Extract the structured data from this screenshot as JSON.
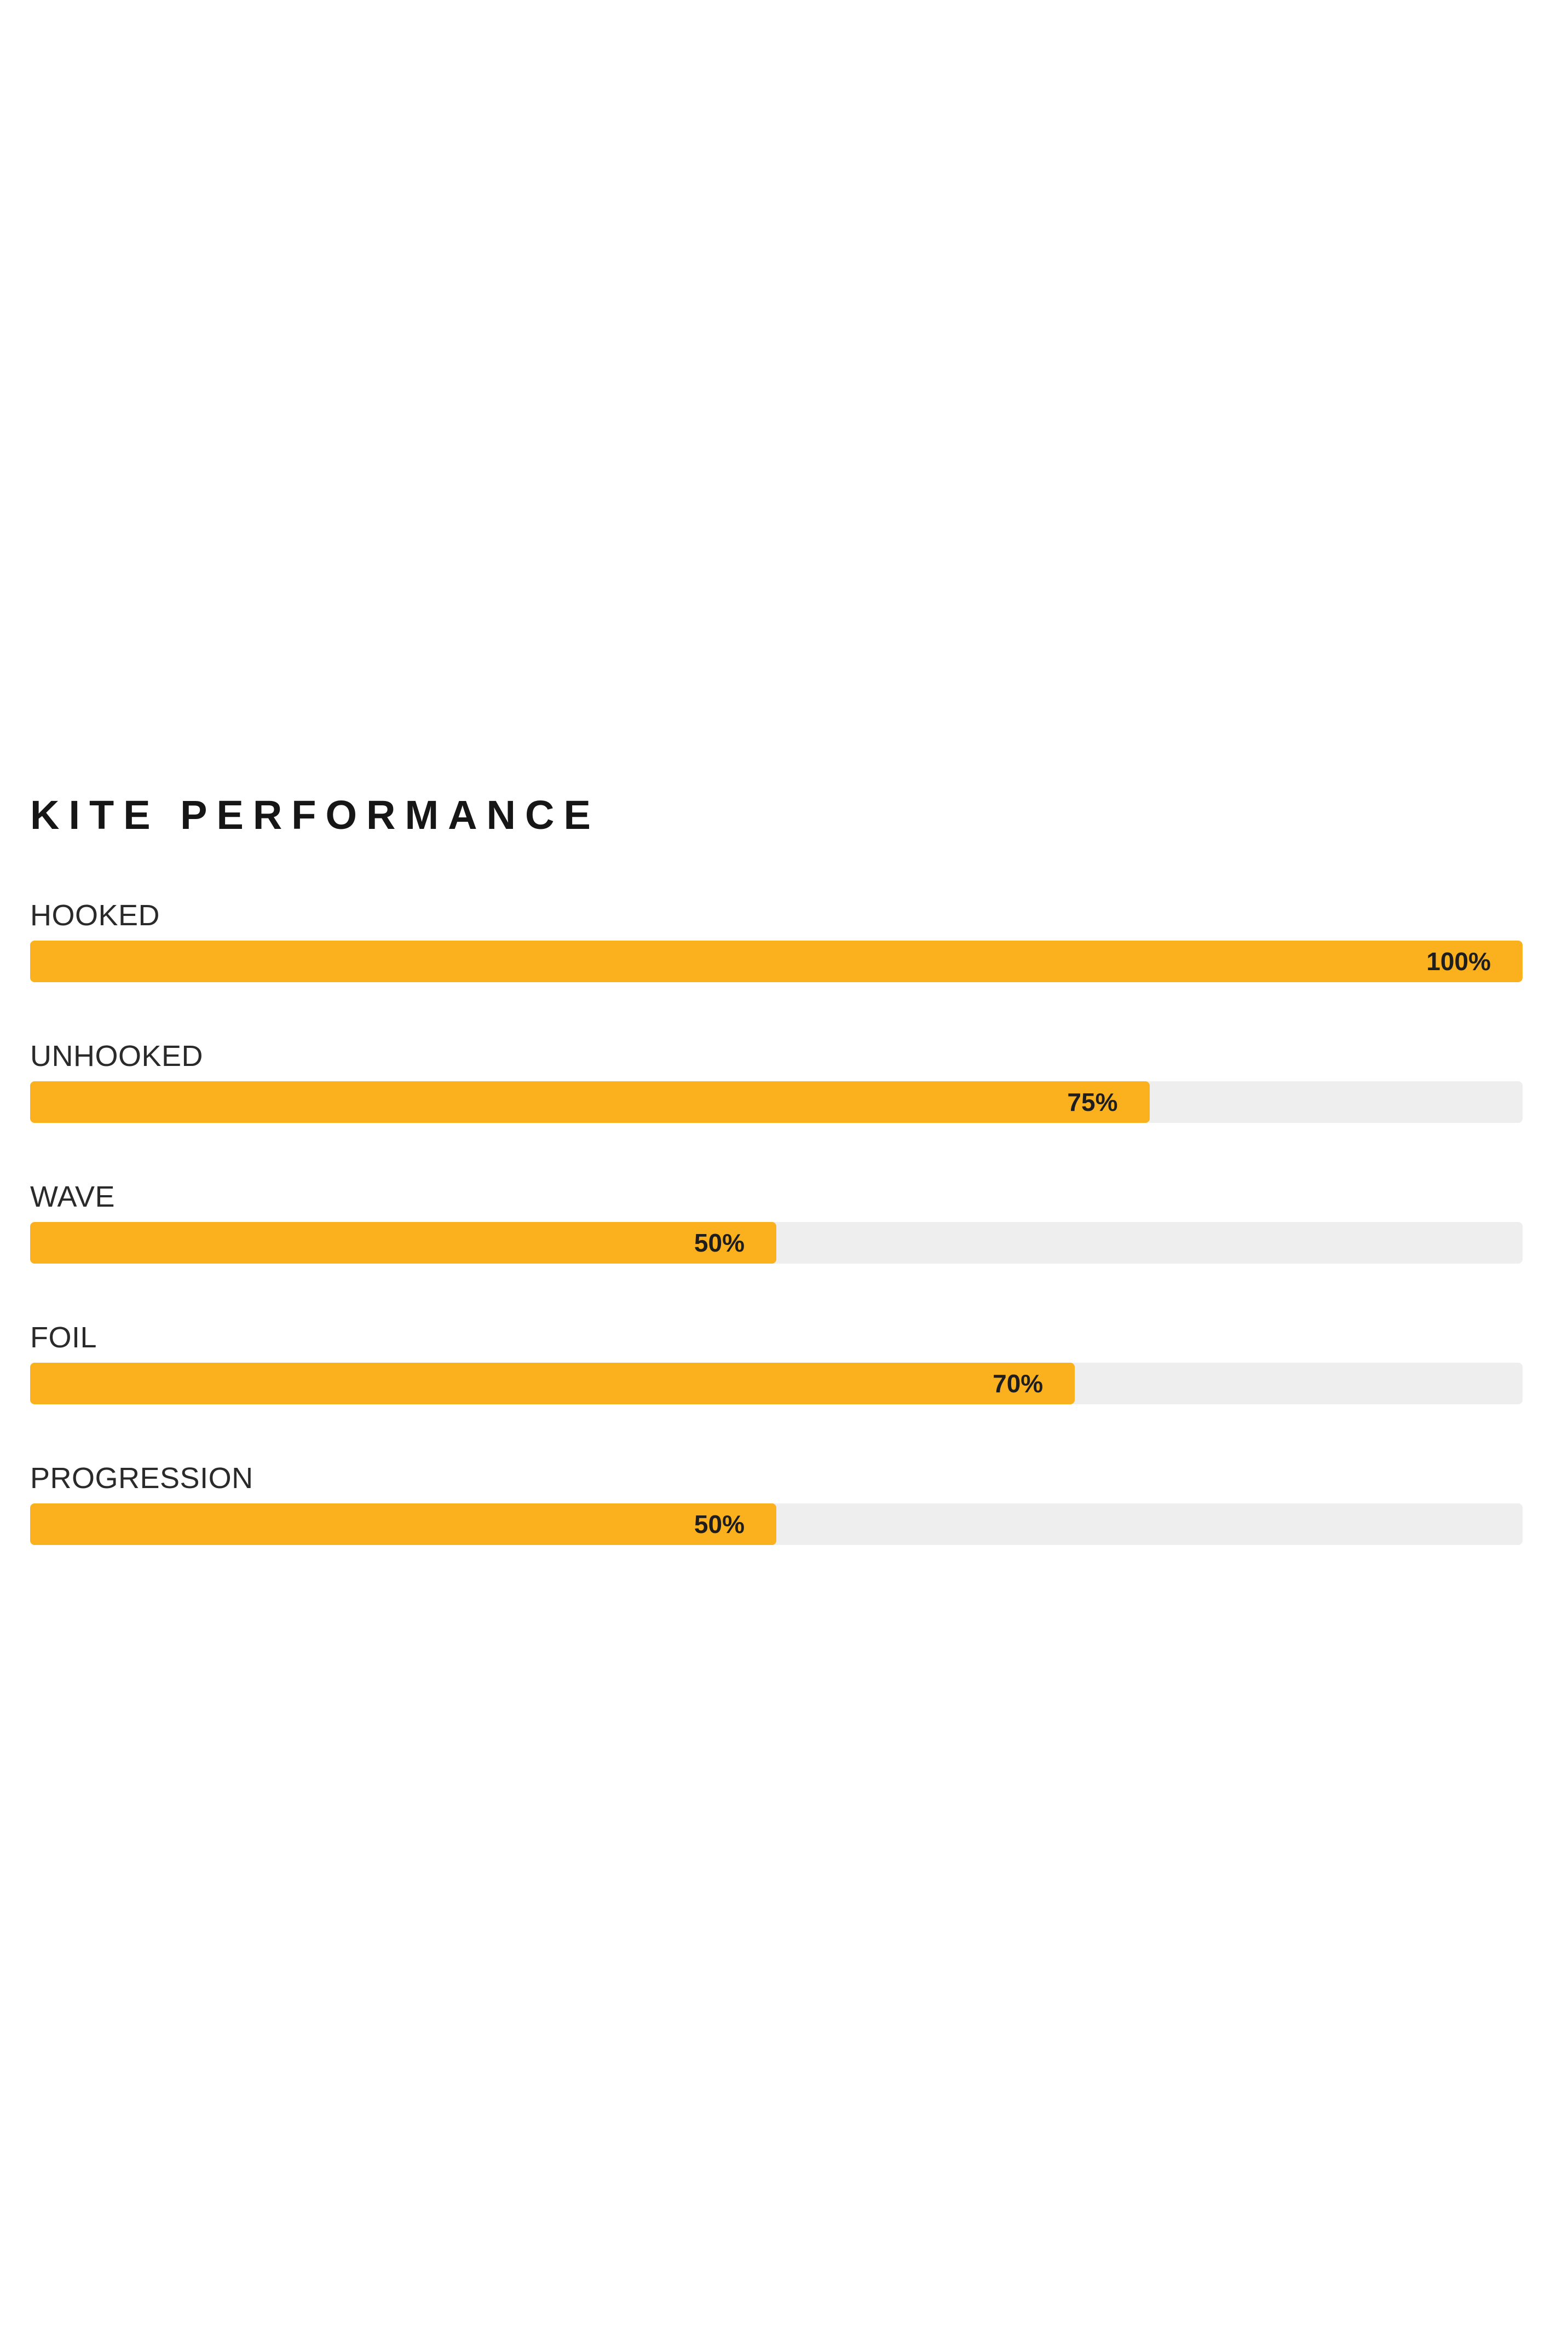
{
  "page": {
    "background": "#ffffff"
  },
  "section": {
    "title": "KITE PERFORMANCE"
  },
  "chart_data": {
    "type": "bar",
    "orientation": "horizontal",
    "title": "KITE PERFORMANCE",
    "categories": [
      "HOOKED",
      "UNHOOKED",
      "WAVE",
      "FOIL",
      "PROGRESSION"
    ],
    "values": [
      100,
      75,
      50,
      70,
      50
    ],
    "value_labels": [
      "100%",
      "75%",
      "50%",
      "70%",
      "50%"
    ],
    "xlim": [
      0,
      100
    ],
    "grid": false,
    "legend": "none",
    "value_label_position": "inside-end",
    "colors": {
      "bar": "#FBB11E",
      "track": "#EEEEEE",
      "value_text": "#1E1E1E",
      "category_text": "#2A2A2A",
      "title_text": "#161616"
    }
  }
}
